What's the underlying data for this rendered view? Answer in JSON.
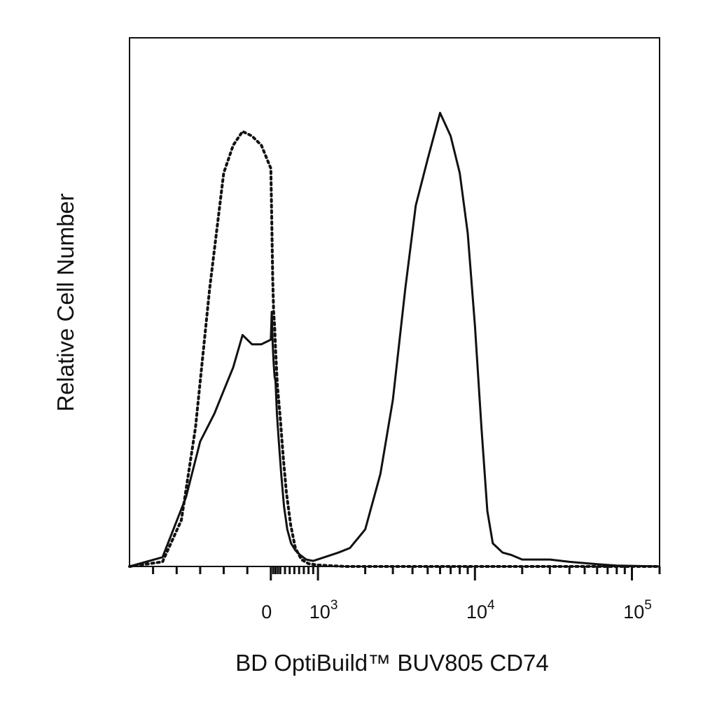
{
  "chart_data": {
    "type": "line",
    "title": "",
    "xlabel": "BD OptiBuild™ BUV805 CD74",
    "ylabel": "Relative Cell Number",
    "x_scale": "biexponential",
    "xlim": [
      -300,
      150000
    ],
    "ylim": [
      0,
      100
    ],
    "grid": false,
    "legend": "none",
    "x_ticks": [
      {
        "value": 0,
        "label": "0",
        "exp": ""
      },
      {
        "value": 1000,
        "label": "10",
        "exp": "3"
      },
      {
        "value": 10000,
        "label": "10",
        "exp": "4"
      },
      {
        "value": 100000,
        "label": "10",
        "exp": "5"
      }
    ],
    "series": [
      {
        "style": "dotted",
        "color": "#111111",
        "x": [
          -300,
          -230,
          -190,
          -160,
          -130,
          -100,
          -80,
          -60,
          -40,
          -20,
          0,
          20,
          40,
          60,
          80,
          100,
          140,
          200,
          260,
          330,
          420,
          520,
          650,
          800,
          1000,
          1500,
          3000,
          10000,
          150000
        ],
        "y": [
          0,
          1,
          10,
          30,
          60,
          85,
          91,
          94,
          93,
          91,
          86,
          75,
          62,
          55,
          52,
          47,
          39,
          32,
          24,
          16,
          9,
          4,
          1.5,
          0.6,
          0.3,
          0,
          0,
          0,
          0
        ]
      },
      {
        "style": "solid",
        "color": "#111111",
        "x": [
          -300,
          -230,
          -180,
          -150,
          -120,
          -100,
          -80,
          -60,
          -40,
          -20,
          0,
          20,
          40,
          60,
          80,
          100,
          130,
          170,
          220,
          280,
          350,
          430,
          520,
          620,
          750,
          900,
          1100,
          1350,
          1600,
          2000,
          2500,
          3000,
          3600,
          4200,
          5000,
          6000,
          7000,
          8000,
          9000,
          10000,
          11000,
          12000,
          13000,
          15000,
          17000,
          20000,
          25000,
          30000,
          40000,
          60000,
          80000,
          150000
        ],
        "y": [
          0,
          2,
          15,
          27,
          33,
          38,
          43,
          50,
          48,
          48,
          49,
          55,
          48,
          44,
          41,
          40,
          33,
          27,
          20,
          13,
          8,
          5,
          3.5,
          2.5,
          1.5,
          1.2,
          2,
          3,
          4,
          8,
          20,
          36,
          60,
          78,
          88,
          98,
          93,
          85,
          72,
          52,
          30,
          12,
          5,
          3,
          2.5,
          1.5,
          1.5,
          1.5,
          1,
          0.5,
          0.2,
          0
        ]
      }
    ]
  }
}
